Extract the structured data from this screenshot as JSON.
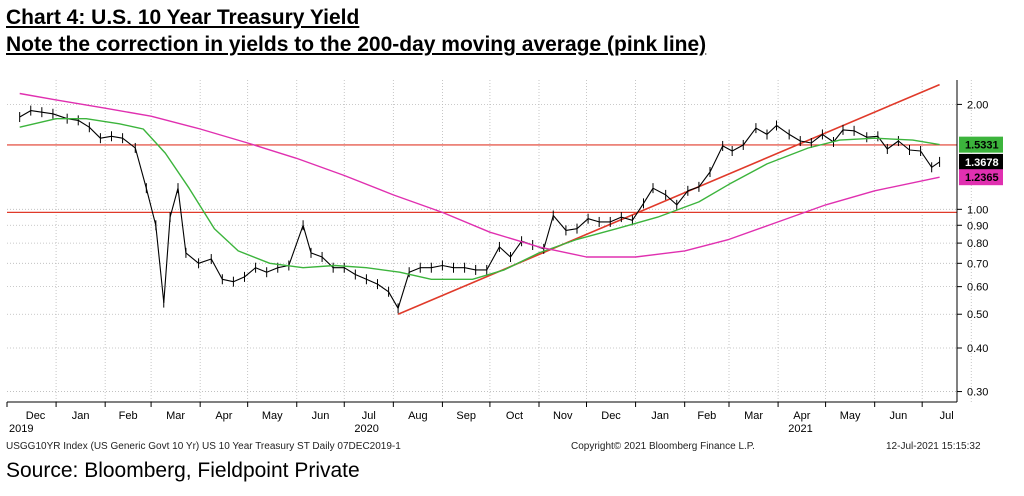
{
  "header": {
    "title": "Chart 4: U.S. 10 Year Treasury Yield",
    "subtitle": "Note the correction in yields to the 200-day moving average (pink line)"
  },
  "footer": {
    "index_info": "USGG10YR Index (US Generic Govt 10 Yr) US 10 Year Treasury ST  Daily 07DEC2019-1",
    "copyright": "Copyright© 2021 Bloomberg Finance L.P.",
    "timestamp": "12-Jul-2021 15:15:32",
    "source": "Source: Bloomberg, Fieldpoint Private"
  },
  "chart_data": {
    "type": "line",
    "title": "Chart 4: U.S. 10 Year Treasury Yield",
    "subtitle": "Note the correction in yields to the 200-day moving average (pink line)",
    "yscale": "log",
    "ylim": [
      0.28,
      2.35
    ],
    "x_ticks": [
      "Dec",
      "Jan",
      "Feb",
      "Mar",
      "Apr",
      "May",
      "Jun",
      "Jul",
      "Aug",
      "Sep",
      "Oct",
      "Nov",
      "Dec",
      "Jan",
      "Feb",
      "Mar",
      "Apr",
      "May",
      "Jun",
      "Jul"
    ],
    "year_labels": [
      {
        "label": "2019",
        "at_month": "Dec 2019"
      },
      {
        "label": "2020",
        "at_month": "Jul 2020"
      },
      {
        "label": "2021",
        "at_month": "Apr 2021"
      }
    ],
    "y_ticks": [
      "2.00",
      "1.00",
      "0.90",
      "0.80",
      "0.70",
      "0.60",
      "0.50",
      "0.40",
      "0.30"
    ],
    "series": [
      {
        "name": "",
        "kind": "price",
        "color": "#000000",
        "points": [
          [
            "2019-12-09",
            1.84
          ],
          [
            "2019-12-16",
            1.92
          ],
          [
            "2019-12-23",
            1.9
          ],
          [
            "2019-12-30",
            1.88
          ],
          [
            "2020-01-08",
            1.82
          ],
          [
            "2020-01-15",
            1.8
          ],
          [
            "2020-01-22",
            1.72
          ],
          [
            "2020-01-29",
            1.6
          ],
          [
            "2020-02-05",
            1.62
          ],
          [
            "2020-02-12",
            1.6
          ],
          [
            "2020-02-20",
            1.5
          ],
          [
            "2020-02-27",
            1.15
          ],
          [
            "2020-03-04",
            0.9
          ],
          [
            "2020-03-09",
            0.54
          ],
          [
            "2020-03-13",
            0.95
          ],
          [
            "2020-03-18",
            1.15
          ],
          [
            "2020-03-23",
            0.75
          ],
          [
            "2020-03-31",
            0.7
          ],
          [
            "2020-04-08",
            0.72
          ],
          [
            "2020-04-15",
            0.63
          ],
          [
            "2020-04-22",
            0.62
          ],
          [
            "2020-04-29",
            0.64
          ],
          [
            "2020-05-06",
            0.68
          ],
          [
            "2020-05-13",
            0.66
          ],
          [
            "2020-05-20",
            0.68
          ],
          [
            "2020-05-27",
            0.69
          ],
          [
            "2020-06-05",
            0.9
          ],
          [
            "2020-06-10",
            0.75
          ],
          [
            "2020-06-17",
            0.73
          ],
          [
            "2020-06-24",
            0.68
          ],
          [
            "2020-07-01",
            0.68
          ],
          [
            "2020-07-08",
            0.65
          ],
          [
            "2020-07-15",
            0.63
          ],
          [
            "2020-07-22",
            0.61
          ],
          [
            "2020-07-29",
            0.58
          ],
          [
            "2020-08-04",
            0.52
          ],
          [
            "2020-08-11",
            0.66
          ],
          [
            "2020-08-18",
            0.68
          ],
          [
            "2020-08-25",
            0.68
          ],
          [
            "2020-09-01",
            0.69
          ],
          [
            "2020-09-08",
            0.68
          ],
          [
            "2020-09-15",
            0.68
          ],
          [
            "2020-09-22",
            0.67
          ],
          [
            "2020-09-29",
            0.67
          ],
          [
            "2020-10-07",
            0.78
          ],
          [
            "2020-10-14",
            0.73
          ],
          [
            "2020-10-21",
            0.81
          ],
          [
            "2020-10-28",
            0.79
          ],
          [
            "2020-11-04",
            0.77
          ],
          [
            "2020-11-10",
            0.96
          ],
          [
            "2020-11-18",
            0.87
          ],
          [
            "2020-11-25",
            0.88
          ],
          [
            "2020-12-02",
            0.94
          ],
          [
            "2020-12-09",
            0.92
          ],
          [
            "2020-12-16",
            0.92
          ],
          [
            "2020-12-23",
            0.95
          ],
          [
            "2020-12-30",
            0.93
          ],
          [
            "2021-01-06",
            1.04
          ],
          [
            "2021-01-12",
            1.15
          ],
          [
            "2021-01-20",
            1.1
          ],
          [
            "2021-01-27",
            1.03
          ],
          [
            "2021-02-03",
            1.13
          ],
          [
            "2021-02-10",
            1.16
          ],
          [
            "2021-02-17",
            1.28
          ],
          [
            "2021-02-25",
            1.52
          ],
          [
            "2021-03-03",
            1.47
          ],
          [
            "2021-03-10",
            1.53
          ],
          [
            "2021-03-18",
            1.71
          ],
          [
            "2021-03-25",
            1.64
          ],
          [
            "2021-03-31",
            1.74
          ],
          [
            "2021-04-08",
            1.64
          ],
          [
            "2021-04-15",
            1.57
          ],
          [
            "2021-04-22",
            1.55
          ],
          [
            "2021-04-29",
            1.64
          ],
          [
            "2021-05-06",
            1.56
          ],
          [
            "2021-05-12",
            1.69
          ],
          [
            "2021-05-19",
            1.68
          ],
          [
            "2021-05-27",
            1.61
          ],
          [
            "2021-06-03",
            1.62
          ],
          [
            "2021-06-09",
            1.49
          ],
          [
            "2021-06-16",
            1.57
          ],
          [
            "2021-06-23",
            1.48
          ],
          [
            "2021-06-30",
            1.47
          ],
          [
            "2021-07-07",
            1.32
          ],
          [
            "2021-07-12",
            1.3678
          ]
        ]
      },
      {
        "name": "",
        "kind": "moving-average-short",
        "color": "#3cb43c",
        "last_value": 1.5331,
        "points": [
          [
            "2019-12-09",
            1.72
          ],
          [
            "2020-01-01",
            1.82
          ],
          [
            "2020-01-20",
            1.82
          ],
          [
            "2020-02-10",
            1.76
          ],
          [
            "2020-02-25",
            1.7
          ],
          [
            "2020-03-10",
            1.45
          ],
          [
            "2020-03-25",
            1.15
          ],
          [
            "2020-04-10",
            0.88
          ],
          [
            "2020-04-25",
            0.76
          ],
          [
            "2020-05-15",
            0.7
          ],
          [
            "2020-06-05",
            0.68
          ],
          [
            "2020-06-25",
            0.69
          ],
          [
            "2020-07-15",
            0.68
          ],
          [
            "2020-08-05",
            0.66
          ],
          [
            "2020-08-25",
            0.63
          ],
          [
            "2020-09-20",
            0.63
          ],
          [
            "2020-10-10",
            0.67
          ],
          [
            "2020-11-01",
            0.75
          ],
          [
            "2020-11-25",
            0.82
          ],
          [
            "2020-12-20",
            0.88
          ],
          [
            "2021-01-15",
            0.95
          ],
          [
            "2021-02-10",
            1.05
          ],
          [
            "2021-03-01",
            1.18
          ],
          [
            "2021-03-25",
            1.35
          ],
          [
            "2021-04-20",
            1.5
          ],
          [
            "2021-05-10",
            1.58
          ],
          [
            "2021-06-01",
            1.6
          ],
          [
            "2021-06-25",
            1.58
          ],
          [
            "2021-07-12",
            1.5331
          ]
        ]
      },
      {
        "name": "200-day moving average",
        "kind": "moving-average-200",
        "color": "#e030b0",
        "last_value": 1.2365,
        "points": [
          [
            "2019-12-09",
            2.15
          ],
          [
            "2020-01-01",
            2.06
          ],
          [
            "2020-02-01",
            1.95
          ],
          [
            "2020-03-01",
            1.85
          ],
          [
            "2020-04-01",
            1.7
          ],
          [
            "2020-05-01",
            1.55
          ],
          [
            "2020-06-01",
            1.4
          ],
          [
            "2020-07-01",
            1.25
          ],
          [
            "2020-08-01",
            1.1
          ],
          [
            "2020-09-01",
            0.98
          ],
          [
            "2020-10-01",
            0.86
          ],
          [
            "2020-11-01",
            0.78
          ],
          [
            "2020-12-01",
            0.73
          ],
          [
            "2021-01-01",
            0.73
          ],
          [
            "2021-02-01",
            0.76
          ],
          [
            "2021-03-01",
            0.82
          ],
          [
            "2021-04-01",
            0.92
          ],
          [
            "2021-05-01",
            1.03
          ],
          [
            "2021-06-01",
            1.13
          ],
          [
            "2021-07-12",
            1.2365
          ]
        ]
      }
    ],
    "trendline": {
      "color": "#e03a2a",
      "points": [
        [
          "2020-08-04",
          0.5
        ],
        [
          "2021-07-12",
          2.28
        ]
      ]
    },
    "horizontal_lines": [
      {
        "y": 1.53,
        "color": "#e03a2a"
      },
      {
        "y": 0.98,
        "color": "#e03a2a"
      }
    ],
    "value_tags": [
      {
        "value": "1.5331",
        "color": "#3cb43c",
        "text_color": "#000000"
      },
      {
        "value": "1.3678",
        "color": "#000000",
        "text_color": "#ffffff"
      },
      {
        "value": "1.2365",
        "color": "#e030b0",
        "text_color": "#000000"
      }
    ],
    "grid": true,
    "legend": "none"
  }
}
